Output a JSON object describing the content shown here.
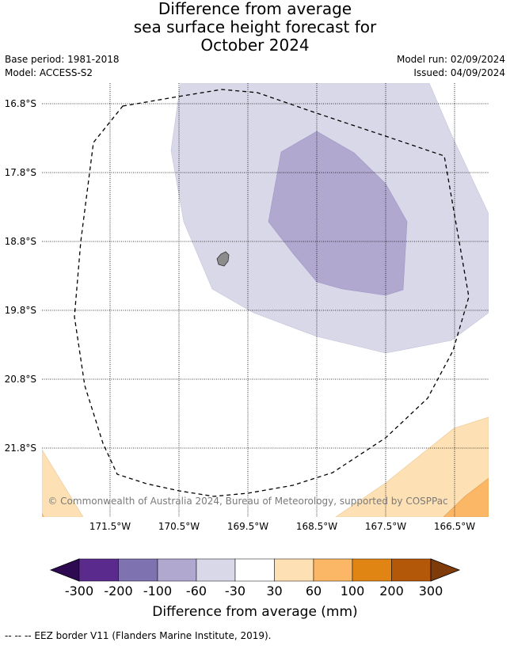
{
  "title": {
    "line1": "Difference from average",
    "line2": "sea surface height forecast for",
    "line3": "October 2024"
  },
  "meta": {
    "base_period": "Base period: 1981-2018",
    "model": "Model: ACCESS-S2",
    "model_run": "Model run: 02/09/2024",
    "issued": "Issued: 04/09/2024"
  },
  "map": {
    "lat_labels": [
      "16.8°S",
      "17.8°S",
      "18.8°S",
      "19.8°S",
      "20.8°S",
      "21.8°S"
    ],
    "lon_labels": [
      "171.5°W",
      "170.5°W",
      "169.5°W",
      "168.5°W",
      "167.5°W",
      "166.5°W"
    ],
    "copyright": "© Commonwealth of Australia 2024, Bureau of Meteorology, supported by COSPPac",
    "fill_colors": {
      "band_neg30_neg60": "#d8d8e8",
      "band_neg60_neg100": "#b1a8d0",
      "band_30_60": "#fde0b4",
      "band_60_100": "#fbb766",
      "land": "#8c8c8c"
    }
  },
  "colorbar": {
    "ticks": [
      "-300",
      "-200",
      "-100",
      "-60",
      "-30",
      "30",
      "60",
      "100",
      "200",
      "300"
    ],
    "colors": [
      "#2d0a52",
      "#5a2a8c",
      "#7f72b0",
      "#b1a8d0",
      "#d8d8e8",
      "#ffffff",
      "#fde0b4",
      "#fbb766",
      "#e08513",
      "#b35708",
      "#7f3b08"
    ],
    "label": "Difference from average (mm)"
  },
  "footer": {
    "legend_text": "-- -- -- EEZ border V11 (Flanders Marine Institute, 2019)."
  }
}
